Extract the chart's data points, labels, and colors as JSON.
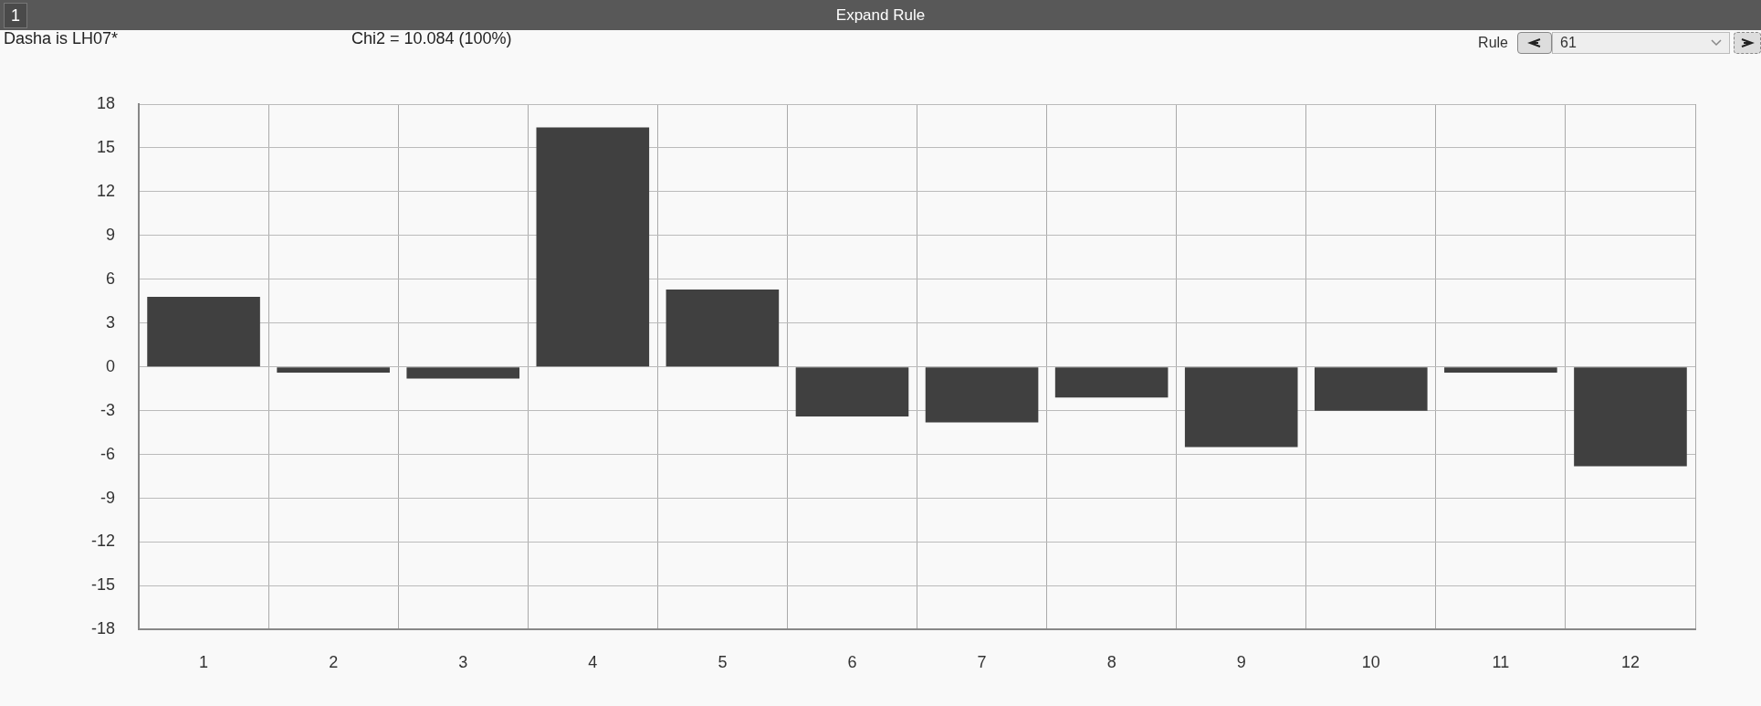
{
  "chart_data": {
    "type": "bar",
    "title": "Expand Rule",
    "annotations": [
      "1",
      "Dasha is LH07*",
      "Chi2 = 10.084 (100%)",
      "Rule",
      "61"
    ],
    "categories": [
      "1",
      "2",
      "3",
      "4",
      "5",
      "6",
      "7",
      "8",
      "9",
      "10",
      "11",
      "12"
    ],
    "values": [
      4.8,
      -0.4,
      -0.8,
      16.4,
      5.3,
      -3.4,
      -3.8,
      -2.1,
      -5.5,
      -3.0,
      -0.4,
      -6.8
    ],
    "color": "#404040",
    "ylim": [
      -18,
      18
    ],
    "yticks": [
      -18,
      -15,
      -12,
      -9,
      -6,
      -3,
      0,
      3,
      6,
      9,
      12,
      15,
      18
    ],
    "grid": true
  }
}
